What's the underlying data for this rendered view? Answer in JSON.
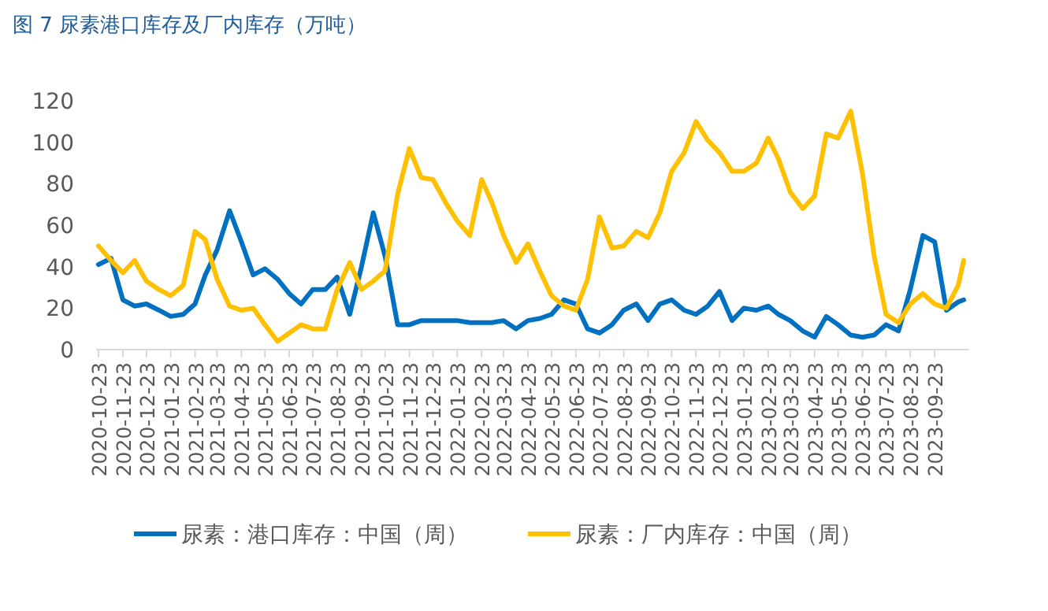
{
  "chart_data": {
    "type": "line",
    "title": "图 7  尿素港口库存及厂内库存（万吨）",
    "x": [
      "2020-10-23",
      "2020-11-08",
      "2020-11-23",
      "2020-12-08",
      "2020-12-23",
      "2021-01-08",
      "2021-01-23",
      "2021-02-08",
      "2021-02-23",
      "2021-03-08",
      "2021-03-23",
      "2021-04-08",
      "2021-04-23",
      "2021-05-08",
      "2021-05-23",
      "2021-06-08",
      "2021-06-23",
      "2021-07-08",
      "2021-07-23",
      "2021-08-08",
      "2021-08-23",
      "2021-09-08",
      "2021-09-23",
      "2021-10-08",
      "2021-10-23",
      "2021-11-08",
      "2021-11-23",
      "2021-12-08",
      "2021-12-23",
      "2022-01-08",
      "2022-01-23",
      "2022-02-08",
      "2022-02-23",
      "2022-03-08",
      "2022-03-23",
      "2022-04-08",
      "2022-04-23",
      "2022-05-08",
      "2022-05-23",
      "2022-06-08",
      "2022-06-23",
      "2022-07-08",
      "2022-07-23",
      "2022-08-08",
      "2022-08-23",
      "2022-09-08",
      "2022-09-23",
      "2022-10-08",
      "2022-10-23",
      "2022-11-08",
      "2022-11-23",
      "2022-12-08",
      "2022-12-23",
      "2023-01-08",
      "2023-01-23",
      "2023-02-08",
      "2023-02-23",
      "2023-03-08",
      "2023-03-23",
      "2023-04-08",
      "2023-04-23",
      "2023-05-08",
      "2023-05-23",
      "2023-06-08",
      "2023-06-23",
      "2023-07-08",
      "2023-07-23",
      "2023-08-08",
      "2023-08-23",
      "2023-09-08",
      "2023-09-23",
      "2023-10-08",
      "2023-10-23",
      "2023-10-30"
    ],
    "series": [
      {
        "name": "尿素：港口库存：中国（周）",
        "color": "#0070c0",
        "values": [
          41,
          44,
          24,
          21,
          22,
          19,
          16,
          17,
          22,
          36,
          48,
          67,
          52,
          36,
          39,
          34,
          27,
          22,
          29,
          29,
          35,
          17,
          40,
          66,
          45,
          12,
          12,
          14,
          14,
          14,
          14,
          13,
          13,
          13,
          14,
          10,
          14,
          15,
          17,
          24,
          22,
          10,
          8,
          12,
          19,
          22,
          14,
          22,
          24,
          19,
          17,
          21,
          28,
          14,
          20,
          19,
          21,
          17,
          14,
          9,
          6,
          16,
          12,
          7,
          6,
          7,
          12,
          9,
          29,
          55,
          52,
          19,
          23,
          24
        ]
      },
      {
        "name": "尿素：厂内库存：中国（周）",
        "color": "#ffc000",
        "values": [
          50,
          43,
          37,
          43,
          33,
          29,
          26,
          31,
          57,
          53,
          34,
          21,
          19,
          20,
          12,
          4,
          8,
          12,
          10,
          10,
          29,
          42,
          29,
          33,
          38,
          75,
          97,
          83,
          82,
          71,
          62,
          55,
          82,
          71,
          55,
          42,
          51,
          38,
          26,
          21,
          19,
          34,
          64,
          49,
          50,
          57,
          54,
          66,
          86,
          95,
          110,
          101,
          95,
          86,
          86,
          90,
          102,
          92,
          76,
          68,
          74,
          104,
          102,
          115,
          85,
          45,
          17,
          13,
          22,
          27,
          22,
          20,
          31,
          43
        ]
      }
    ],
    "xlim": [
      "2020-10-20",
      "2023-11-06"
    ],
    "xticks": [
      "2020-10-23",
      "2020-11-23",
      "2020-12-23",
      "2021-01-23",
      "2021-02-23",
      "2021-03-23",
      "2021-04-23",
      "2021-05-23",
      "2021-06-23",
      "2021-07-23",
      "2021-08-23",
      "2021-09-23",
      "2021-10-23",
      "2021-11-23",
      "2021-12-23",
      "2022-01-23",
      "2022-02-23",
      "2022-03-23",
      "2022-04-23",
      "2022-05-23",
      "2022-06-23",
      "2022-07-23",
      "2022-08-23",
      "2022-09-23",
      "2022-10-23",
      "2022-11-23",
      "2022-12-23",
      "2023-01-23",
      "2023-02-23",
      "2023-03-23",
      "2023-04-23",
      "2023-05-23",
      "2023-06-23",
      "2023-07-23",
      "2023-08-23",
      "2023-09-23"
    ],
    "ylim": [
      0,
      120
    ],
    "yticks": [
      0,
      20,
      40,
      60,
      80,
      100,
      120
    ],
    "legend": "bottom",
    "marker": "none",
    "line_style": "solid"
  }
}
